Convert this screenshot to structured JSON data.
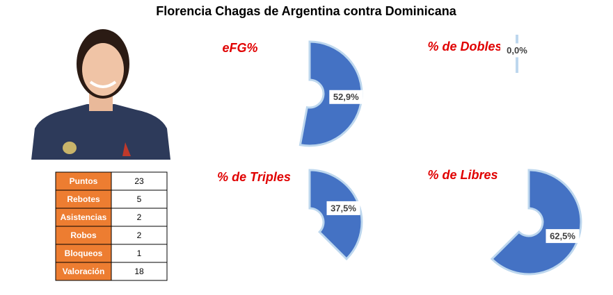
{
  "title": "Florencia Chagas de Argentina contra Dominicana",
  "table": {
    "rows": [
      [
        "Puntos",
        "23"
      ],
      [
        "Rebotes",
        "5"
      ],
      [
        "Asistencias",
        "2"
      ],
      [
        "Robos",
        "2"
      ],
      [
        "Bloqueos",
        "1"
      ],
      [
        "Valoración",
        "18"
      ]
    ]
  },
  "chart_data": [
    {
      "type": "pie",
      "title": "eFG%",
      "values": [
        52.9
      ],
      "value_labels": [
        "52,9%"
      ],
      "color": "#4472c4"
    },
    {
      "type": "pie",
      "title": "% de Dobles",
      "values": [
        0.0
      ],
      "value_labels": [
        "0,0%"
      ],
      "color": "#4472c4"
    },
    {
      "type": "pie",
      "title": "% de Triples",
      "values": [
        37.5
      ],
      "value_labels": [
        "37,5%"
      ],
      "color": "#4472c4"
    },
    {
      "type": "pie",
      "title": "% de Libres",
      "values": [
        62.5
      ],
      "value_labels": [
        "62,5%"
      ],
      "color": "#4472c4"
    }
  ]
}
